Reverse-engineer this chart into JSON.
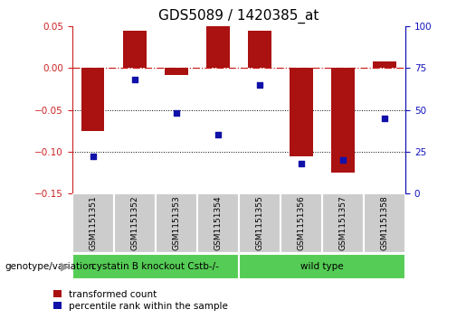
{
  "title": "GDS5089 / 1420385_at",
  "samples": [
    "GSM1151351",
    "GSM1151352",
    "GSM1151353",
    "GSM1151354",
    "GSM1151355",
    "GSM1151356",
    "GSM1151357",
    "GSM1151358"
  ],
  "bar_values": [
    -0.075,
    0.045,
    -0.008,
    0.05,
    0.045,
    -0.105,
    -0.125,
    0.008
  ],
  "percentile_values": [
    22,
    68,
    48,
    35,
    65,
    18,
    20,
    45
  ],
  "ylim_left": [
    -0.15,
    0.05
  ],
  "ylim_right": [
    0,
    100
  ],
  "yticks_left": [
    -0.15,
    -0.1,
    -0.05,
    0,
    0.05
  ],
  "yticks_right": [
    0,
    25,
    50,
    75,
    100
  ],
  "bar_color": "#AA1111",
  "dot_color": "#1111AA",
  "group1_samples": [
    0,
    1,
    2,
    3
  ],
  "group2_samples": [
    4,
    5,
    6,
    7
  ],
  "group1_label": "cystatin B knockout Cstb-/-",
  "group2_label": "wild type",
  "group_color": "#55CC55",
  "row_label": "genotype/variation",
  "legend_bar_label": "transformed count",
  "legend_dot_label": "percentile rank within the sample",
  "title_fontsize": 11,
  "tick_fontsize": 7.5,
  "label_fontsize": 6.5,
  "bar_width": 0.55,
  "bg_color": "#FFFFFF",
  "header_bg": "#CCCCCC"
}
